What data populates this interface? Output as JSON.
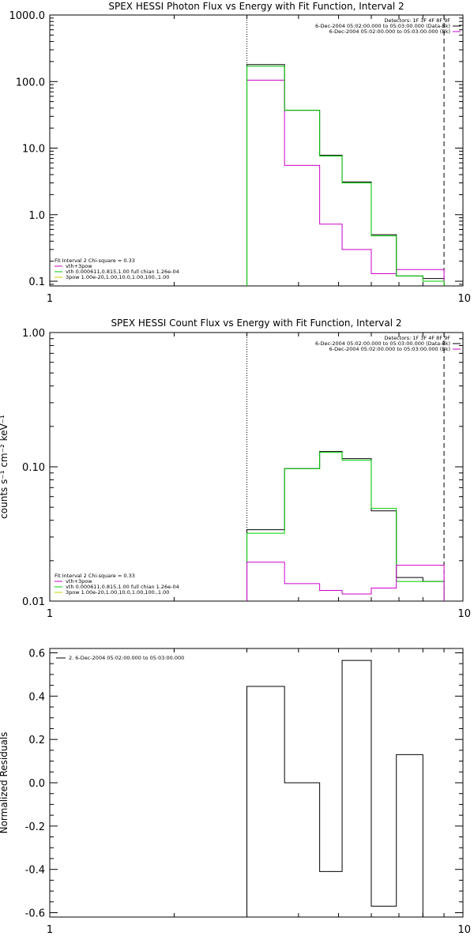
{
  "chart_data": [
    {
      "type": "line",
      "title": "SPEX HESSI Photon Flux vs Energy with Fit Function, Interval 2",
      "xlabel": "",
      "ylabel": "",
      "xscale": "log",
      "yscale": "log",
      "xlim": [
        1,
        10
      ],
      "ylim": [
        0.085,
        1000
      ],
      "xticks": [
        1,
        10
      ],
      "xtick_labels": [
        "1",
        "10"
      ],
      "yticks": [
        0.1,
        1,
        10,
        100,
        1000
      ],
      "ytick_labels": [
        "0.1",
        "1.0",
        "10.0",
        "100.0",
        "1000.0"
      ],
      "vlines": [
        {
          "x": 3.0,
          "style": "dotted"
        },
        {
          "x": 9.0,
          "style": "dashed"
        }
      ],
      "legend_top_right": [
        {
          "text": "Detectors: 1F 3F 4F 8F 9F",
          "color": ""
        },
        {
          "text": "6-Dec-2004 05:02:00.000 to 05:03:00.000 (Data-Bk)",
          "color": "#000000"
        },
        {
          "text": "6-Dec-2004 05:02:00.000 to 05:03:00.000 (Bk)",
          "color": "#cc00cc"
        }
      ],
      "legend_bottom_left": [
        {
          "text": "Fit Interval 2   Chi-square = 0.33",
          "color": "#000000"
        },
        {
          "text": "vth+3pow",
          "color": "#cc00cc"
        },
        {
          "text": "vth 0.000611,0.815,1.00  full chian 1.26e-04",
          "color": "#00cc00"
        },
        {
          "text": "3pow 1.00e-20,1.00,10.0,1.00,100.,1.00",
          "color": "#cccc00"
        }
      ],
      "bin_edges": [
        3.0,
        3.7,
        4.5,
        5.1,
        6.0,
        6.9,
        8.0,
        9.0
      ],
      "series": [
        {
          "name": "Data-Bk",
          "color": "#000000",
          "values": [
            180,
            37,
            7.8,
            3.1,
            0.5,
            0.12,
            0.11
          ]
        },
        {
          "name": "Bk",
          "color": "#cc00cc",
          "values": [
            105,
            5.5,
            0.72,
            0.3,
            0.13,
            0.15,
            0.15
          ]
        },
        {
          "name": "vth",
          "color": "#00cc00",
          "values": [
            170,
            37,
            7.6,
            3.0,
            0.48,
            0.12,
            0.1
          ]
        }
      ]
    },
    {
      "type": "line",
      "title": "SPEX HESSI Count Flux vs Energy with Fit Function, Interval 2",
      "xlabel": "",
      "ylabel": "counts s⁻¹ cm⁻² keV⁻¹",
      "xscale": "log",
      "yscale": "log",
      "xlim": [
        1,
        10
      ],
      "ylim": [
        0.01,
        1.0
      ],
      "xticks": [
        1,
        10
      ],
      "xtick_labels": [
        "1",
        "10"
      ],
      "yticks": [
        0.01,
        0.1,
        1.0
      ],
      "ytick_labels": [
        "0.01",
        "0.10",
        "1.00"
      ],
      "vlines": [
        {
          "x": 3.0,
          "style": "dotted"
        },
        {
          "x": 9.0,
          "style": "dashed"
        }
      ],
      "legend_top_right": [
        {
          "text": "Detectors: 1F 3F 4F 8F 9F",
          "color": ""
        },
        {
          "text": "6-Dec-2004 05:02:00.000 to 05:03:00.000 (Data-Bk)",
          "color": "#000000"
        },
        {
          "text": "6-Dec-2004 05:02:00.000 to 05:03:00.000 (Bk)",
          "color": "#cc00cc"
        }
      ],
      "legend_bottom_left": [
        {
          "text": "Fit Interval 2   Chi-square = 0.33",
          "color": "#000000"
        },
        {
          "text": "vth+3pow",
          "color": "#cc00cc"
        },
        {
          "text": "vth 0.000611,0.815,1.00  full chian 1.26e-04",
          "color": "#00cc00"
        },
        {
          "text": "3pow 1.00e-20,1.00,10.0,1.00,100.,1.00",
          "color": "#cccc00"
        }
      ],
      "bin_edges": [
        3.0,
        3.7,
        4.5,
        5.1,
        6.0,
        6.9,
        8.0,
        9.0
      ],
      "series": [
        {
          "name": "Data-Bk",
          "color": "#000000",
          "values": [
            0.034,
            0.097,
            0.13,
            0.115,
            0.047,
            0.015,
            0.014
          ]
        },
        {
          "name": "vth",
          "color": "#00cc00",
          "values": [
            0.032,
            0.097,
            0.128,
            0.112,
            0.049,
            0.014,
            0.014
          ]
        },
        {
          "name": "Bk",
          "color": "#cc00cc",
          "values": [
            0.0195,
            0.0135,
            0.012,
            0.0113,
            0.0125,
            0.0185,
            0.0185
          ]
        }
      ]
    },
    {
      "type": "line",
      "title": "",
      "xlabel": "",
      "ylabel": "Normalized Residuals",
      "xscale": "log",
      "yscale": "linear",
      "xlim": [
        1,
        10
      ],
      "ylim": [
        -0.62,
        0.62
      ],
      "xticks": [
        1,
        10
      ],
      "xtick_labels": [
        "1",
        "10"
      ],
      "yticks": [
        -0.6,
        -0.4,
        -0.2,
        0.0,
        0.2,
        0.4,
        0.6
      ],
      "ytick_labels": [
        "-0.6",
        "-0.4",
        "-0.2",
        "0.0",
        "0.2",
        "0.4",
        "0.6"
      ],
      "legend_top_left": [
        {
          "text": "2.  6-Dec-2004 05:02:00.000 to 05:03:00.000",
          "color": "#000000"
        }
      ],
      "bin_edges": [
        3.0,
        3.7,
        4.5,
        5.1,
        6.0,
        6.9,
        8.0,
        9.0
      ],
      "series": [
        {
          "name": "",
          "color": "#000000",
          "values": [
            0.445,
            0.0,
            -0.41,
            0.565,
            -0.57,
            0.13,
            null
          ]
        }
      ]
    }
  ]
}
